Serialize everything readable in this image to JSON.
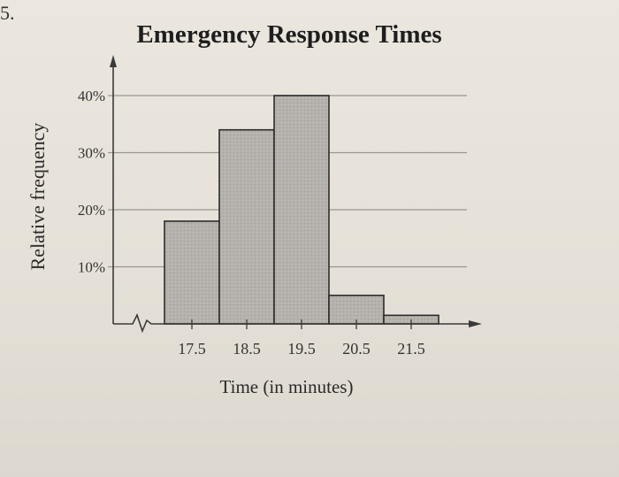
{
  "corner_mark": "5.",
  "chart_data": {
    "type": "bar",
    "title": "Emergency Response Times",
    "xlabel": "Time (in minutes)",
    "ylabel": "Relative frequency",
    "categories": [
      "17.5",
      "18.5",
      "19.5",
      "20.5",
      "21.5"
    ],
    "values": [
      18,
      34,
      40,
      5,
      1.5
    ],
    "yticks": [
      "10%",
      "20%",
      "30%",
      "40%"
    ],
    "ytick_values": [
      10,
      20,
      30,
      40
    ],
    "ylim": [
      0,
      40
    ],
    "grid": true,
    "histogram": true,
    "axis_break": true,
    "bar_color": "#b5b2ad",
    "edge_color": "#2b2b2b",
    "grid_color": "#9a968f"
  }
}
